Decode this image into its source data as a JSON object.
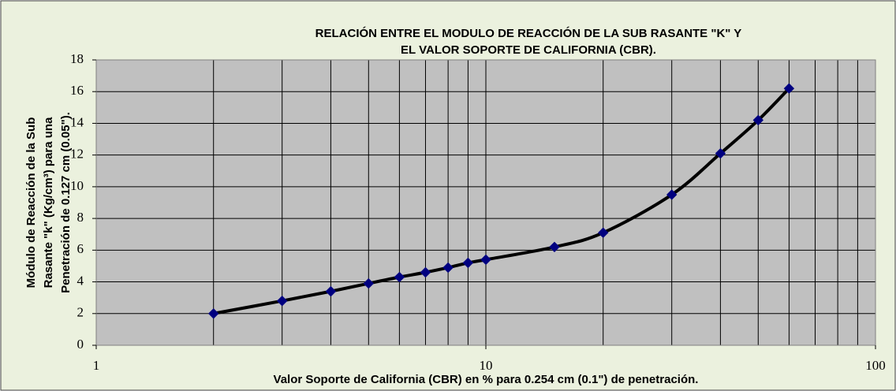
{
  "chart_data": {
    "type": "line",
    "title": [
      "RELACIÓN ENTRE EL MODULO DE REACCIÓN DE LA SUB RASANTE \"K\" Y",
      "EL VALOR SOPORTE DE CALIFORNIA (CBR)."
    ],
    "xlabel": "Valor Soporte de California (CBR) en % para 0.254 cm (0.1\") de penetración.",
    "ylabel": [
      "Módulo de Reacción de la Sub",
      "Rasante \"k\" (Kg/cm³) para una",
      "Penetración de 0.127 cm (0.05\")."
    ],
    "x": [
      2,
      3,
      4,
      5,
      6,
      7,
      8,
      9,
      10,
      15,
      20,
      30,
      40,
      50,
      60
    ],
    "series": [
      {
        "color": "#000000",
        "marker_color": "#000080",
        "values": [
          2.0,
          2.8,
          3.4,
          3.9,
          4.3,
          4.6,
          4.9,
          5.2,
          5.4,
          6.2,
          7.1,
          9.5,
          12.1,
          14.2,
          16.2
        ]
      }
    ],
    "xscale": "log",
    "xlim": [
      1,
      100
    ],
    "xticks": [
      1,
      10,
      100
    ],
    "xminor_ticks": [
      2,
      3,
      4,
      5,
      6,
      7,
      8,
      9,
      20,
      30,
      40,
      50,
      60,
      70,
      80,
      90
    ],
    "ylim": [
      0,
      18
    ],
    "yticks": [
      0,
      2,
      4,
      6,
      8,
      10,
      12,
      14,
      16,
      18
    ],
    "grid": true
  }
}
